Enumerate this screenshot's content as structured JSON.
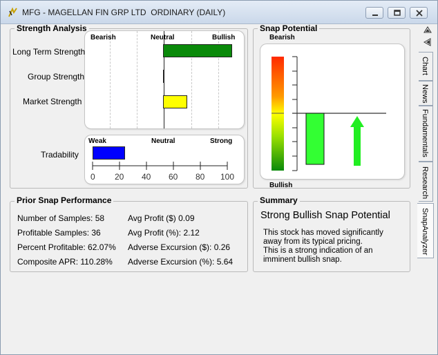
{
  "window": {
    "title": "MFG - MAGELLAN FIN GRP LTD  ORDINARY (DAILY)",
    "buttons": [
      "minimize",
      "restore",
      "close"
    ]
  },
  "strength_analysis": {
    "title": "Strength Analysis",
    "headers": {
      "bearish": "Bearish",
      "neutral": "Neutral",
      "bullish": "Bullish"
    },
    "rows": [
      {
        "label": "Long Term Strength",
        "value": 100,
        "color": "#0a8a0a"
      },
      {
        "label": "Group Strength",
        "value": 1,
        "color": "#000000"
      },
      {
        "label": "Market Strength",
        "value": 35,
        "color": "#ffff00"
      }
    ],
    "scale_note": "Bars extend from Neutral (center) toward Bullish; value as percent of half-scale"
  },
  "tradability": {
    "label": "Tradability",
    "headers": {
      "weak": "Weak",
      "neutral": "Neutral",
      "strong": "Strong"
    },
    "value": 24,
    "color": "#0000ff",
    "ticks": [
      "0",
      "20",
      "40",
      "60",
      "80",
      "100"
    ]
  },
  "snap_potential": {
    "title": "Snap Potential",
    "top_label": "Bearish",
    "bottom_label": "Bullish",
    "bar_fraction_below_center": 0.93,
    "bar_color": "#33ff33",
    "arrow_color": "#22ee22",
    "arrow_direction": "up"
  },
  "prior_snap": {
    "title": "Prior Snap Performance",
    "left": [
      "Number of Samples: 58",
      "Profitable Samples: 36",
      "Percent Profitable: 62.07%",
      "Composite APR: 110.28%"
    ],
    "right": [
      "Avg Profit ($) 0.09",
      "Avg Profit (%): 2.12",
      "Adverse Excursion ($): 0.26",
      "Adverse Excursion (%): 5.64"
    ]
  },
  "summary": {
    "title": "Summary",
    "headline": "Strong Bullish Snap Potential",
    "lines": [
      "This stock has moved significantly",
      "away from its typical pricing.",
      "This is a strong indication of an",
      "imminent bullish snap."
    ]
  },
  "side_tabs": [
    "Chart",
    "News",
    "Fundamentals",
    "Research",
    "SnapAnalyzer"
  ],
  "active_tab": "SnapAnalyzer"
}
